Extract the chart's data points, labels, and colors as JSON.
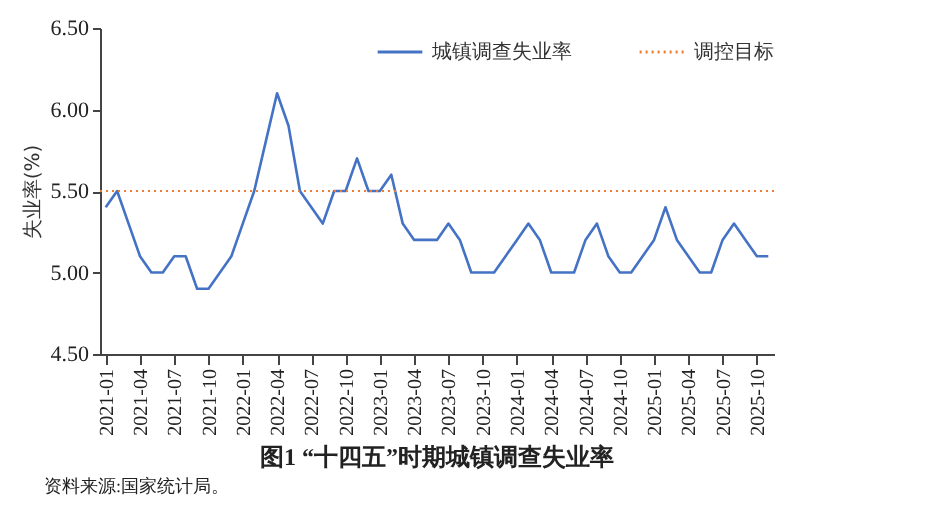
{
  "chart_data": {
    "type": "line",
    "title": "图1 “十四五”时期城镇调查失业率",
    "ylabel": "失业率(%)",
    "annotations": [
      "资料来源:国家统计局。"
    ],
    "categories": [
      "2021-01",
      null,
      null,
      "2021-04",
      null,
      null,
      "2021-07",
      null,
      null,
      "2021-10",
      null,
      null,
      "2022-01",
      null,
      null,
      "2022-04",
      null,
      null,
      "2022-07",
      null,
      null,
      "2022-10",
      null,
      null,
      "2023-01",
      null,
      null,
      "2023-04",
      null,
      null,
      "2023-07",
      null,
      null,
      "2023-10",
      null,
      null,
      "2024-01",
      null,
      null,
      "2024-04",
      null,
      null,
      "2024-07",
      null,
      null,
      "2024-10",
      null,
      null,
      "2025-01",
      null,
      null,
      "2025-04",
      null,
      null,
      "2025-07",
      null,
      null,
      "2025-10",
      null
    ],
    "series": [
      {
        "name": "城镇调查失业率",
        "color": "#4472c4",
        "values": [
          5.4,
          5.5,
          5.3,
          5.1,
          5.0,
          5.0,
          5.1,
          5.1,
          4.9,
          4.9,
          5.0,
          5.1,
          5.3,
          5.5,
          5.8,
          6.1,
          5.9,
          5.5,
          5.4,
          5.3,
          5.5,
          5.5,
          5.7,
          5.5,
          5.5,
          5.6,
          5.3,
          5.2,
          5.2,
          5.2,
          5.3,
          5.2,
          5.0,
          5.0,
          5.0,
          5.1,
          5.2,
          5.3,
          5.2,
          5.0,
          5.0,
          5.0,
          5.2,
          5.3,
          5.1,
          5.0,
          5.0,
          5.1,
          5.2,
          5.4,
          5.2,
          5.1,
          5.0,
          5.0,
          5.2,
          5.3,
          5.2,
          5.1,
          5.1
        ]
      }
    ],
    "ref_lines": [
      {
        "axis": "y",
        "value": 5.5,
        "label": "调控目标",
        "color": "#ed7d31",
        "line_style": "dotted"
      }
    ],
    "ylim": [
      4.5,
      6.5
    ],
    "yticks": [
      {
        "value": 4.5,
        "label": "4.50"
      },
      {
        "value": 5.0,
        "label": "5.00"
      },
      {
        "value": 5.5,
        "label": "5.50"
      },
      {
        "value": 6.0,
        "label": "6.00"
      },
      {
        "value": 6.5,
        "label": "6.50"
      }
    ],
    "grid": false,
    "legend": "top right",
    "line_style": "solid",
    "marker": "none"
  }
}
